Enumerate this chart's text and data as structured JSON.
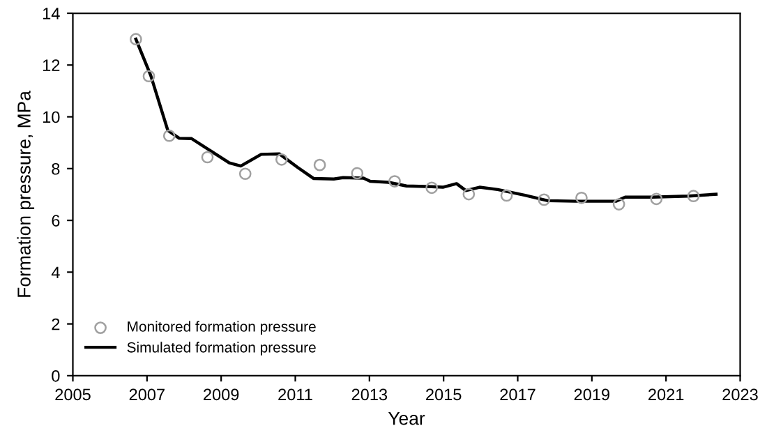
{
  "chart_data": {
    "type": "line",
    "xlabel": "Year",
    "ylabel": "Formation pressure, MPa",
    "xlim": [
      2005,
      2023
    ],
    "xticks": [
      2005,
      2007,
      2009,
      2011,
      2013,
      2015,
      2017,
      2019,
      2021,
      2023
    ],
    "ylim": [
      0,
      14
    ],
    "yticks": [
      0,
      2,
      4,
      6,
      8,
      10,
      12,
      14
    ],
    "grid": false,
    "legend": "bottom left",
    "series": [
      {
        "name": "Monitored formation pressure",
        "type": "scatter",
        "marker": "circle",
        "color": "#a0a0a0",
        "x": [
          2006.7,
          2007.05,
          2007.6,
          2008.63,
          2009.65,
          2010.63,
          2011.66,
          2012.67,
          2013.68,
          2014.68,
          2015.68,
          2016.7,
          2017.71,
          2018.72,
          2019.73,
          2020.74,
          2021.74
        ],
        "values": [
          13.0,
          11.57,
          9.27,
          8.44,
          7.8,
          8.35,
          8.14,
          7.82,
          7.51,
          7.26,
          7.01,
          6.96,
          6.8,
          6.87,
          6.62,
          6.83,
          6.94
        ]
      },
      {
        "name": "Simulated formation pressure",
        "marker": "none",
        "line_style": "solid",
        "color": "#000000",
        "x": [
          2006.7,
          2007.1,
          2007.56,
          2007.87,
          2008.2,
          2008.73,
          2009.22,
          2009.53,
          2010.08,
          2010.57,
          2011.06,
          2011.49,
          2012.04,
          2012.29,
          2012.84,
          2013.02,
          2013.51,
          2014.0,
          2014.68,
          2014.98,
          2015.35,
          2015.6,
          2015.97,
          2016.46,
          2017.2,
          2017.81,
          2018.55,
          2019.65,
          2019.9,
          2020.63,
          2021.61,
          2022.35
        ],
        "values": [
          13.0,
          11.6,
          9.48,
          9.17,
          9.16,
          8.67,
          8.22,
          8.1,
          8.55,
          8.57,
          8.05,
          7.62,
          7.6,
          7.65,
          7.63,
          7.51,
          7.47,
          7.33,
          7.3,
          7.28,
          7.42,
          7.15,
          7.28,
          7.19,
          6.97,
          6.76,
          6.74,
          6.74,
          6.9,
          6.9,
          6.94,
          7.01
        ]
      }
    ]
  }
}
